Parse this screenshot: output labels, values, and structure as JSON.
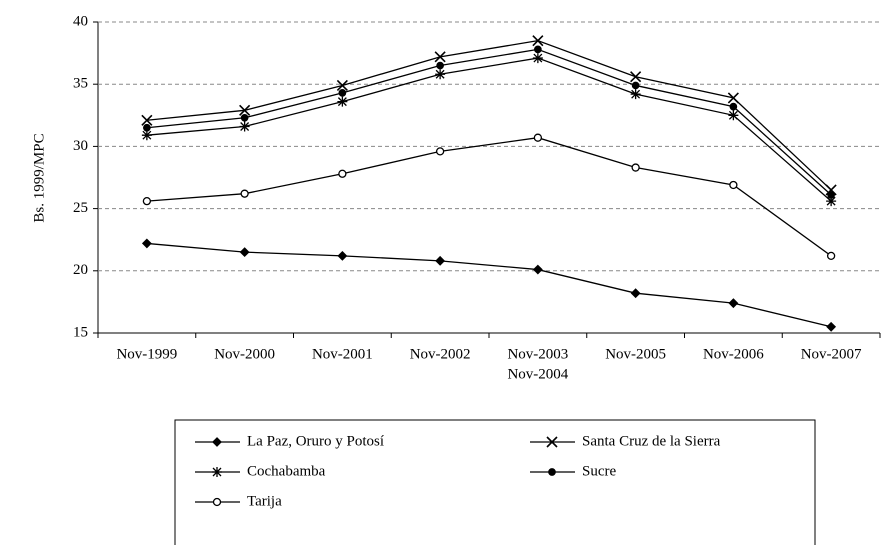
{
  "chart_data": {
    "type": "line",
    "y_label": "Bs. 1999/MPC",
    "categories": [
      "Nov-1999",
      "Nov-2000",
      "Nov-2001",
      "Nov-2002",
      [
        "Nov-2003",
        "Nov-2004"
      ],
      "Nov-2005",
      "Nov-2006",
      "Nov-2007"
    ],
    "series": [
      {
        "name": "La Paz, Oruro y Potosí",
        "color": "#000000",
        "marker": "diamond",
        "values": [
          22.2,
          21.5,
          21.2,
          20.8,
          20.1,
          18.2,
          17.4,
          15.5
        ]
      },
      {
        "name": "Santa Cruz de la Sierra",
        "color": "#000000",
        "marker": "x",
        "values": [
          32.1,
          32.9,
          34.9,
          37.2,
          38.5,
          35.6,
          33.9,
          26.5
        ]
      },
      {
        "name": "Cochabamba",
        "color": "#000000",
        "marker": "asterisk",
        "values": [
          30.9,
          31.6,
          33.6,
          35.8,
          37.1,
          34.2,
          32.5,
          25.6
        ]
      },
      {
        "name": "Sucre",
        "color": "#000000",
        "marker": "dot",
        "values": [
          31.5,
          32.3,
          34.3,
          36.5,
          37.8,
          34.9,
          33.2,
          26.1
        ]
      },
      {
        "name": "Tarija",
        "color": "#000000",
        "marker": "circle",
        "values": [
          25.6,
          26.2,
          27.8,
          29.6,
          30.7,
          28.3,
          26.9,
          21.2
        ]
      }
    ],
    "ylim": [
      15,
      40
    ],
    "yticks": [
      15,
      20,
      25,
      30,
      35,
      40
    ],
    "grid": true,
    "legend": "bottom"
  }
}
